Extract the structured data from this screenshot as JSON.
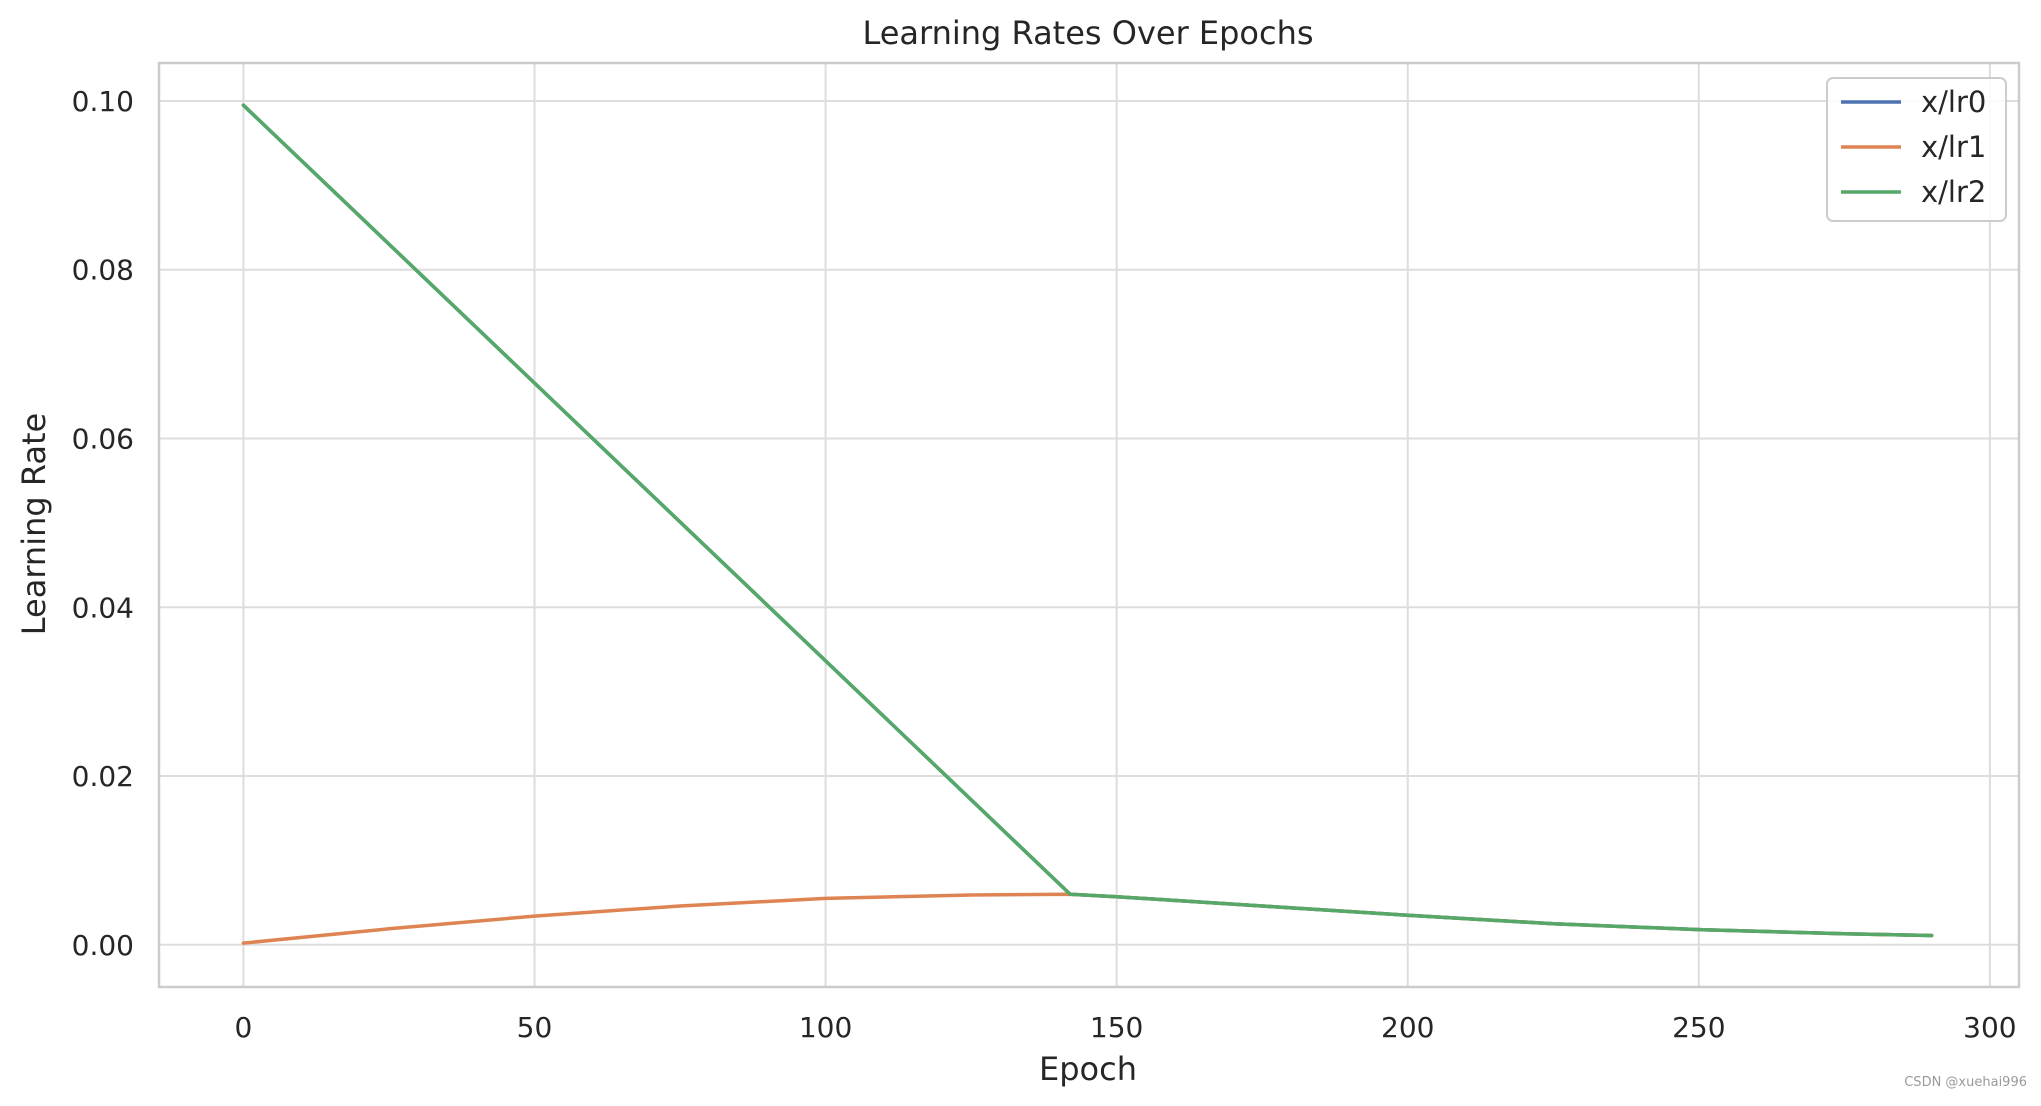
{
  "watermark": "CSDN @xuehai996",
  "chart_data": {
    "type": "line",
    "title": "Learning Rates Over Epochs",
    "xlabel": "Epoch",
    "ylabel": "Learning Rate",
    "xlim": [
      -14.5,
      305
    ],
    "ylim": [
      -0.005,
      0.1045
    ],
    "xticks": [
      0,
      50,
      100,
      150,
      200,
      250,
      300
    ],
    "xtick_labels": [
      "0",
      "50",
      "100",
      "150",
      "200",
      "250",
      "300"
    ],
    "yticks": [
      0.0,
      0.02,
      0.04,
      0.06,
      0.08,
      0.1
    ],
    "ytick_labels": [
      "0.00",
      "0.02",
      "0.04",
      "0.06",
      "0.08",
      "0.10"
    ],
    "grid": true,
    "legend_position": "top-right",
    "series": [
      {
        "name": "x/lr0",
        "color": "#4c72b0",
        "x": [
          0,
          142,
          150,
          175,
          200,
          225,
          250,
          275,
          290
        ],
        "y": [
          0.0995,
          0.006,
          0.0057,
          0.0046,
          0.0035,
          0.0025,
          0.0018,
          0.0013,
          0.0011
        ]
      },
      {
        "name": "x/lr1",
        "color": "#dd8452",
        "x": [
          0,
          25,
          50,
          75,
          100,
          125,
          142,
          150,
          175,
          200,
          225,
          250,
          275,
          290
        ],
        "y": [
          0.0002,
          0.0019,
          0.0034,
          0.0046,
          0.0055,
          0.0059,
          0.006,
          0.0057,
          0.0046,
          0.0035,
          0.0025,
          0.0018,
          0.0013,
          0.0011
        ]
      },
      {
        "name": "x/lr2",
        "color": "#55a868",
        "x": [
          0,
          142,
          150,
          175,
          200,
          225,
          250,
          275,
          290
        ],
        "y": [
          0.0995,
          0.006,
          0.0057,
          0.0046,
          0.0035,
          0.0025,
          0.0018,
          0.0013,
          0.0011
        ]
      }
    ]
  }
}
